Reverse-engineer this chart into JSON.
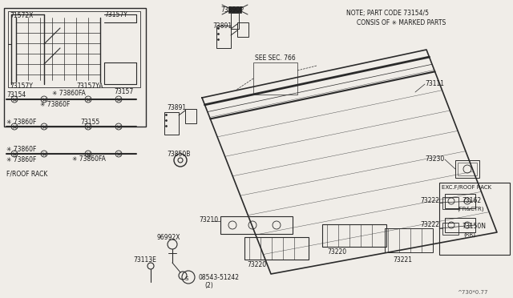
{
  "bg_color": "#f0ede8",
  "line_color": "#2a2a2a",
  "text_color": "#1a1a1a",
  "diagram_id": "^730*0.77",
  "note_line1": "NOTE; PART CODE 73154/5",
  "note_line2": "CONSIS OF ✳ MARKED PARTS",
  "see_sec": "SEE SEC. 766",
  "froof_label": "F/ROOF RACK",
  "exc_title": "EXC.F/ROOF RACK",
  "exc_items": [
    "73162",
    "(FR&CTR)",
    "73150N",
    "(RR)"
  ]
}
